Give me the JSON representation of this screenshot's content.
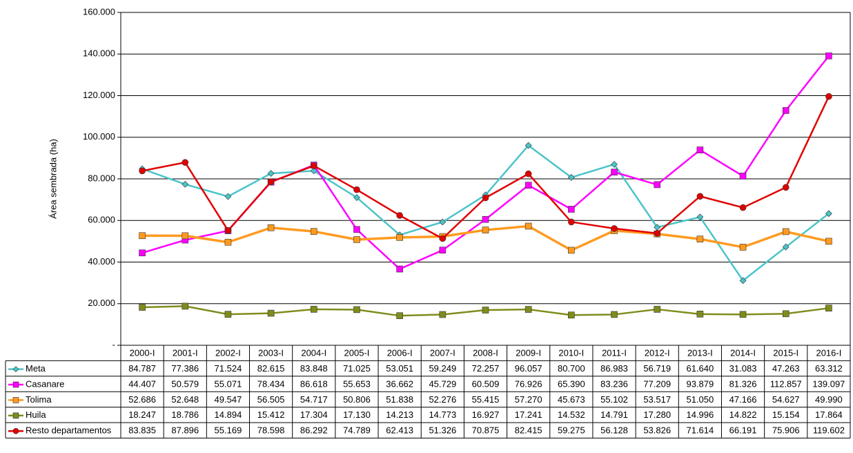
{
  "chart_data": {
    "type": "line",
    "y_label": "Área sembrada (ha)",
    "categories": [
      "2000-I",
      "2001-I",
      "2002-I",
      "2003-I",
      "2004-I",
      "2005-I",
      "2006-I",
      "2007-I",
      "2008-I",
      "2009-I",
      "2010-I",
      "2011-I",
      "2012-I",
      "2013-I",
      "2014-I",
      "2015-I",
      "2016-I"
    ],
    "ylim": [
      0,
      160000
    ],
    "yticks": [
      {
        "value": 0,
        "label": "-"
      },
      {
        "value": 20000,
        "label": "20.000"
      },
      {
        "value": 40000,
        "label": "40.000"
      },
      {
        "value": 60000,
        "label": "60.000"
      },
      {
        "value": 80000,
        "label": "80.000"
      },
      {
        "value": 100000,
        "label": "100.000"
      },
      {
        "value": 120000,
        "label": "120.000"
      },
      {
        "value": 140000,
        "label": "140.000"
      },
      {
        "value": 160000,
        "label": "160.000"
      }
    ],
    "grid": true,
    "series": [
      {
        "name": "Meta",
        "color": "#4bc4c9",
        "marker": "diamond",
        "values": [
          84787,
          77386,
          71524,
          82615,
          83848,
          71025,
          53051,
          59249,
          72257,
          96057,
          80700,
          86983,
          56719,
          61640,
          31083,
          47263,
          63312
        ],
        "value_labels": [
          "84.787",
          "77.386",
          "71.524",
          "82.615",
          "83.848",
          "71.025",
          "53.051",
          "59.249",
          "72.257",
          "96.057",
          "80.700",
          "86.983",
          "56.719",
          "61.640",
          "31.083",
          "47.263",
          "63.312"
        ]
      },
      {
        "name": "Casanare",
        "color": "#ff00ff",
        "marker": "square",
        "values": [
          44407,
          50579,
          55071,
          78434,
          86618,
          55653,
          36662,
          45729,
          60509,
          76926,
          65390,
          83236,
          77209,
          93879,
          81326,
          112857,
          139097
        ],
        "value_labels": [
          "44.407",
          "50.579",
          "55.071",
          "78.434",
          "86.618",
          "55.653",
          "36.662",
          "45.729",
          "60.509",
          "76.926",
          "65.390",
          "83.236",
          "77.209",
          "93.879",
          "81.326",
          "112.857",
          "139.097"
        ]
      },
      {
        "name": "Tolima",
        "color": "#ff9a1f",
        "marker": "square",
        "values": [
          52686,
          52648,
          49547,
          56505,
          54717,
          50806,
          51838,
          52276,
          55415,
          57270,
          45673,
          55102,
          53517,
          51050,
          47166,
          54627,
          49990
        ],
        "value_labels": [
          "52.686",
          "52.648",
          "49.547",
          "56.505",
          "54.717",
          "50.806",
          "51.838",
          "52.276",
          "55.415",
          "57.270",
          "45.673",
          "55.102",
          "53.517",
          "51.050",
          "47.166",
          "54.627",
          "49.990"
        ]
      },
      {
        "name": "Huila",
        "color": "#7f8c1c",
        "marker": "square",
        "values": [
          18247,
          18786,
          14894,
          15412,
          17304,
          17130,
          14213,
          14773,
          16927,
          17241,
          14532,
          14791,
          17280,
          14996,
          14822,
          15154,
          17864
        ],
        "value_labels": [
          "18.247",
          "18.786",
          "14.894",
          "15.412",
          "17.304",
          "17.130",
          "14.213",
          "14.773",
          "16.927",
          "17.241",
          "14.532",
          "14.791",
          "17.280",
          "14.996",
          "14.822",
          "15.154",
          "17.864"
        ]
      },
      {
        "name": "Resto departamentos",
        "color": "#e00000",
        "marker": "circle",
        "values": [
          83835,
          87896,
          55169,
          78598,
          86292,
          74789,
          62413,
          51326,
          70875,
          82415,
          59275,
          56128,
          53826,
          71614,
          66191,
          75906,
          119602
        ],
        "value_labels": [
          "83.835",
          "87.896",
          "55.169",
          "78.598",
          "86.292",
          "74.789",
          "62.413",
          "51.326",
          "70.875",
          "82.415",
          "59.275",
          "56.128",
          "53.826",
          "71.614",
          "66.191",
          "75.906",
          "119.602"
        ]
      }
    ]
  }
}
